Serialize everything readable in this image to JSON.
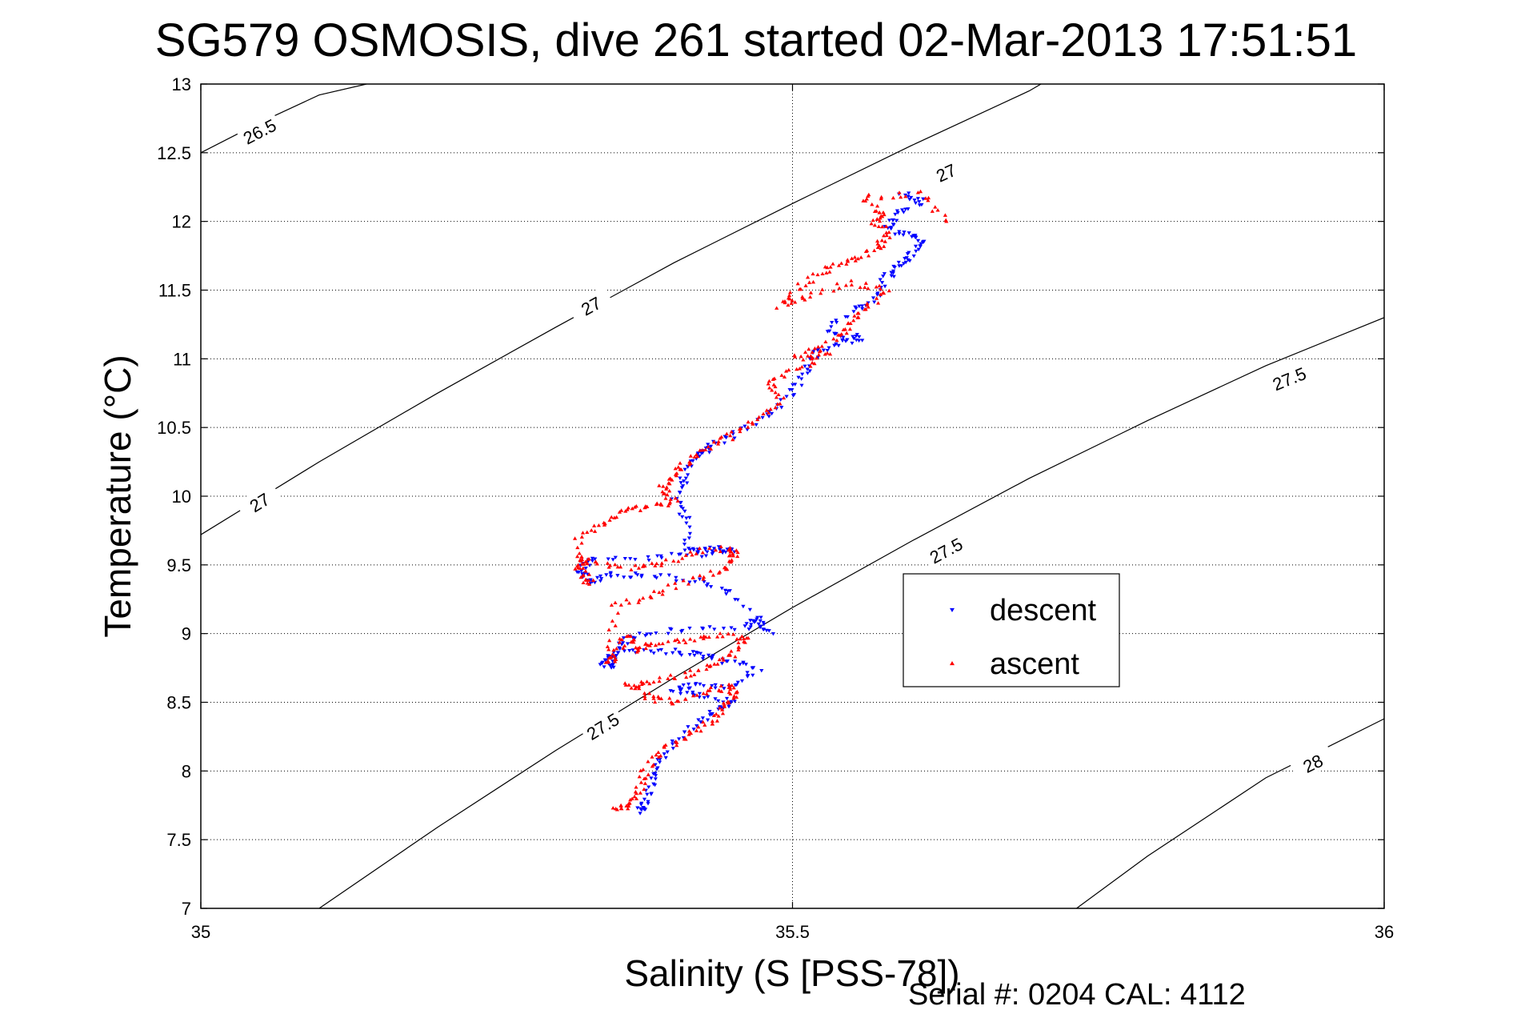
{
  "chart_data": {
    "type": "scatter",
    "title": "SG579 OSMOSIS, dive 261 started 02-Mar-2013 17:51:51",
    "xlabel": "Salinity (S [PSS-78])",
    "ylabel": "Temperature (°C)",
    "xlim": [
      35,
      36
    ],
    "ylim": [
      7,
      13
    ],
    "xticks": [
      35,
      35.5,
      36
    ],
    "xtick_labels": [
      "35",
      "35.5",
      "36"
    ],
    "yticks": [
      7,
      7.5,
      8,
      8.5,
      9,
      9.5,
      10,
      10.5,
      11,
      11.5,
      12,
      12.5,
      13
    ],
    "ytick_labels": [
      "7",
      "7.5",
      "8",
      "8.5",
      "9",
      "9.5",
      "10",
      "10.5",
      "11",
      "11.5",
      "12",
      "12.5",
      "13"
    ],
    "grid": true,
    "legend_position": "center-right",
    "footer": "Serial #: 0204  CAL: 4112",
    "contours": [
      {
        "level": "26.5",
        "points": [
          [
            35,
            12.5
          ],
          [
            35.05,
            12.72
          ],
          [
            35.1,
            12.92
          ],
          [
            35.14,
            13.0
          ]
        ],
        "labels": [
          {
            "text": "26.5",
            "at": [
              35.05,
              12.65
            ]
          }
        ]
      },
      {
        "level": "27",
        "points": [
          [
            35,
            9.72
          ],
          [
            35.1,
            10.25
          ],
          [
            35.2,
            10.75
          ],
          [
            35.3,
            11.23
          ],
          [
            35.4,
            11.7
          ],
          [
            35.5,
            12.13
          ],
          [
            35.6,
            12.55
          ],
          [
            35.7,
            12.95
          ],
          [
            35.71,
            13.0
          ]
        ],
        "labels": [
          {
            "text": "27",
            "at": [
              35.05,
              9.95
            ]
          },
          {
            "text": "27",
            "at": [
              35.33,
              11.38
            ]
          },
          {
            "text": "27",
            "at": [
              35.63,
              12.35
            ]
          }
        ]
      },
      {
        "level": "27.5",
        "points": [
          [
            35.1,
            7.0
          ],
          [
            35.2,
            7.59
          ],
          [
            35.3,
            8.15
          ],
          [
            35.4,
            8.68
          ],
          [
            35.5,
            9.19
          ],
          [
            35.6,
            9.67
          ],
          [
            35.7,
            10.13
          ],
          [
            35.8,
            10.55
          ],
          [
            35.9,
            10.95
          ],
          [
            36.0,
            11.3
          ]
        ],
        "labels": [
          {
            "text": "27.5",
            "at": [
              35.34,
              8.32
            ]
          },
          {
            "text": "27.5",
            "at": [
              35.63,
              9.6
            ]
          },
          {
            "text": "27.5",
            "at": [
              35.92,
              10.85
            ]
          }
        ]
      },
      {
        "level": "28",
        "points": [
          [
            35.74,
            7.0
          ],
          [
            35.8,
            7.38
          ],
          [
            35.9,
            7.95
          ],
          [
            36.0,
            8.38
          ]
        ],
        "labels": [
          {
            "text": "28",
            "at": [
              35.94,
              8.05
            ]
          }
        ]
      }
    ],
    "series": [
      {
        "name": "descent",
        "color": "#0000ff",
        "marker": "triangle-down",
        "path": [
          [
            35.37,
            7.7
          ],
          [
            35.375,
            7.75
          ],
          [
            35.38,
            7.9
          ],
          [
            35.385,
            8.05
          ],
          [
            35.4,
            8.2
          ],
          [
            35.42,
            8.35
          ],
          [
            35.44,
            8.45
          ],
          [
            35.45,
            8.5
          ],
          [
            35.42,
            8.55
          ],
          [
            35.4,
            8.6
          ],
          [
            35.42,
            8.62
          ],
          [
            35.45,
            8.62
          ],
          [
            35.47,
            8.75
          ],
          [
            35.44,
            8.8
          ],
          [
            35.42,
            8.85
          ],
          [
            35.4,
            8.87
          ],
          [
            35.36,
            8.88
          ],
          [
            35.34,
            8.8
          ],
          [
            35.345,
            8.75
          ],
          [
            35.35,
            8.9
          ],
          [
            35.37,
            9.0
          ],
          [
            35.41,
            9.03
          ],
          [
            35.46,
            9.05
          ],
          [
            35.47,
            9.1
          ],
          [
            35.48,
            9.0
          ],
          [
            35.45,
            9.3
          ],
          [
            35.42,
            9.38
          ],
          [
            35.38,
            9.43
          ],
          [
            35.35,
            9.43
          ],
          [
            35.33,
            9.38
          ],
          [
            35.32,
            9.45
          ],
          [
            35.33,
            9.55
          ],
          [
            35.38,
            9.55
          ],
          [
            35.42,
            9.58
          ],
          [
            35.45,
            9.6
          ],
          [
            35.43,
            9.62
          ],
          [
            35.41,
            9.6
          ],
          [
            35.41,
            9.85
          ],
          [
            35.4,
            10.0
          ],
          [
            35.41,
            10.15
          ],
          [
            35.42,
            10.3
          ],
          [
            35.43,
            10.35
          ],
          [
            35.45,
            10.45
          ],
          [
            35.48,
            10.6
          ],
          [
            35.5,
            10.75
          ],
          [
            35.51,
            10.9
          ],
          [
            35.52,
            11.05
          ],
          [
            35.54,
            11.12
          ],
          [
            35.56,
            11.15
          ],
          [
            35.53,
            11.2
          ],
          [
            35.55,
            11.35
          ],
          [
            35.57,
            11.45
          ],
          [
            35.58,
            11.6
          ],
          [
            35.59,
            11.67
          ],
          [
            35.6,
            11.75
          ],
          [
            35.61,
            11.85
          ],
          [
            35.6,
            11.9
          ],
          [
            35.58,
            11.95
          ],
          [
            35.59,
            12.05
          ],
          [
            35.61,
            12.15
          ],
          [
            35.59,
            12.2
          ]
        ]
      },
      {
        "name": "ascent",
        "color": "#ff0000",
        "marker": "triangle-up",
        "path": [
          [
            35.35,
            7.72
          ],
          [
            35.36,
            7.75
          ],
          [
            35.37,
            7.85
          ],
          [
            35.375,
            8.0
          ],
          [
            35.39,
            8.15
          ],
          [
            35.41,
            8.25
          ],
          [
            35.43,
            8.35
          ],
          [
            35.44,
            8.45
          ],
          [
            35.45,
            8.55
          ],
          [
            35.45,
            8.62
          ],
          [
            35.43,
            8.58
          ],
          [
            35.4,
            8.5
          ],
          [
            35.38,
            8.53
          ],
          [
            35.36,
            8.62
          ],
          [
            35.38,
            8.65
          ],
          [
            35.41,
            8.7
          ],
          [
            35.43,
            8.78
          ],
          [
            35.45,
            8.85
          ],
          [
            35.46,
            8.97
          ],
          [
            35.44,
            8.99
          ],
          [
            35.41,
            8.95
          ],
          [
            35.38,
            8.92
          ],
          [
            35.37,
            8.88
          ],
          [
            35.36,
            9.0
          ],
          [
            35.35,
            8.85
          ],
          [
            35.345,
            8.78
          ],
          [
            35.35,
            9.2
          ],
          [
            35.38,
            9.28
          ],
          [
            35.41,
            9.38
          ],
          [
            35.44,
            9.45
          ],
          [
            35.45,
            9.55
          ],
          [
            35.45,
            9.62
          ],
          [
            35.42,
            9.6
          ],
          [
            35.39,
            9.5
          ],
          [
            35.36,
            9.48
          ],
          [
            35.33,
            9.52
          ],
          [
            35.32,
            9.55
          ],
          [
            35.32,
            9.45
          ],
          [
            35.33,
            9.35
          ],
          [
            35.32,
            9.7
          ],
          [
            35.34,
            9.8
          ],
          [
            35.36,
            9.9
          ],
          [
            35.38,
            9.93
          ],
          [
            35.4,
            9.95
          ],
          [
            35.39,
            10.05
          ],
          [
            35.4,
            10.15
          ],
          [
            35.41,
            10.25
          ],
          [
            35.43,
            10.35
          ],
          [
            35.45,
            10.45
          ],
          [
            35.47,
            10.55
          ],
          [
            35.49,
            10.7
          ],
          [
            35.48,
            10.85
          ],
          [
            35.51,
            10.95
          ],
          [
            35.53,
            11.05
          ],
          [
            35.5,
            11.0
          ],
          [
            35.54,
            11.15
          ],
          [
            35.55,
            11.25
          ],
          [
            35.56,
            11.35
          ],
          [
            35.58,
            11.5
          ],
          [
            35.55,
            11.55
          ],
          [
            35.51,
            11.45
          ],
          [
            35.49,
            11.38
          ],
          [
            35.51,
            11.55
          ],
          [
            35.53,
            11.65
          ],
          [
            35.55,
            11.72
          ],
          [
            35.57,
            11.8
          ],
          [
            35.58,
            11.9
          ],
          [
            35.57,
            12.0
          ],
          [
            35.575,
            12.05
          ],
          [
            35.56,
            12.18
          ],
          [
            35.61,
            12.2
          ],
          [
            35.63,
            12.0
          ]
        ]
      }
    ]
  }
}
